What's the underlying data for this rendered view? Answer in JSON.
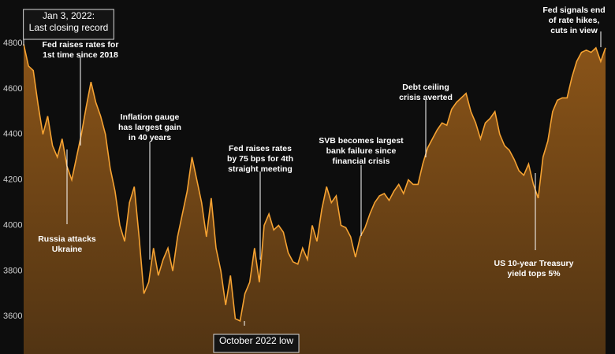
{
  "chart_data": {
    "type": "area",
    "color": "#f5a232",
    "fill": "#8a5418",
    "ylim": [
      3435,
      4990
    ],
    "yticks": [
      3600,
      3800,
      4000,
      4200,
      4400,
      4600,
      4800
    ],
    "values": [
      4796,
      4700,
      4680,
      4530,
      4400,
      4480,
      4350,
      4300,
      4380,
      4260,
      4200,
      4300,
      4400,
      4520,
      4630,
      4540,
      4480,
      4400,
      4250,
      4150,
      4000,
      3930,
      4100,
      4170,
      3950,
      3700,
      3750,
      3900,
      3780,
      3850,
      3900,
      3800,
      3950,
      4050,
      4150,
      4300,
      4200,
      4100,
      3950,
      4120,
      3900,
      3800,
      3650,
      3780,
      3590,
      3580,
      3700,
      3750,
      3900,
      3750,
      4000,
      4050,
      3980,
      4000,
      3970,
      3880,
      3840,
      3830,
      3900,
      3850,
      4000,
      3930,
      4070,
      4170,
      4100,
      4130,
      4000,
      3990,
      3950,
      3860,
      3950,
      3990,
      4050,
      4100,
      4130,
      4140,
      4110,
      4150,
      4180,
      4140,
      4200,
      4180,
      4180,
      4270,
      4340,
      4380,
      4420,
      4450,
      4440,
      4510,
      4540,
      4560,
      4580,
      4500,
      4450,
      4380,
      4450,
      4470,
      4500,
      4400,
      4350,
      4330,
      4290,
      4240,
      4220,
      4270,
      4180,
      4120,
      4300,
      4370,
      4500,
      4550,
      4560,
      4560,
      4650,
      4720,
      4760,
      4770,
      4760,
      4780,
      4720,
      4780
    ],
    "annotations": [
      {
        "lines": [
          "Jan 3, 2022:",
          "Last closing record"
        ]
      },
      {
        "lines": [
          "Fed raises rates for",
          "1st time since 2018"
        ]
      },
      {
        "lines": [
          "Russia attacks",
          "Ukraine"
        ]
      },
      {
        "lines": [
          "Inflation gauge",
          "has largest gain",
          "in 40 years"
        ]
      },
      {
        "lines": [
          "Fed raises rates",
          "by 75 bps for 4th",
          "straight meeting"
        ]
      },
      {
        "lines": [
          "October 2022 low"
        ]
      },
      {
        "lines": [
          "SVB becomes largest",
          "bank failure since",
          "financial crisis"
        ]
      },
      {
        "lines": [
          "Debt ceiling",
          "crisis averted"
        ]
      },
      {
        "lines": [
          "US 10-year Treasury",
          "yield tops 5%"
        ]
      },
      {
        "lines": [
          "Fed signals end",
          "of rate hikes,",
          "cuts in view"
        ]
      }
    ]
  }
}
